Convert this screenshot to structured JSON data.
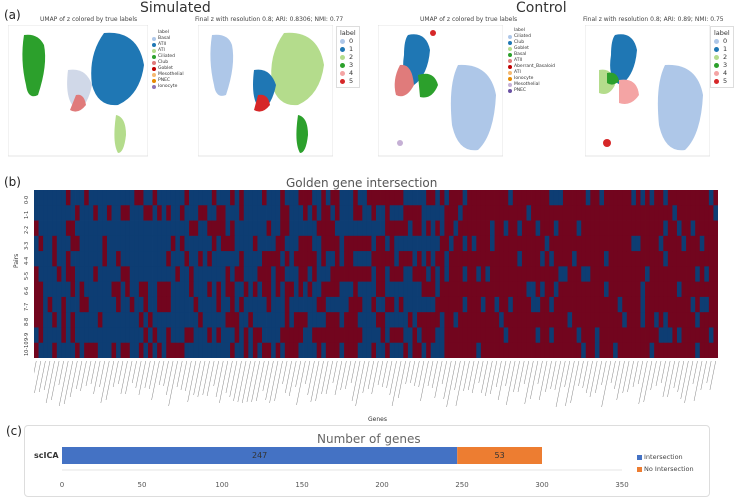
{
  "panel_a": {
    "label": "(a)",
    "group_simulated": "Simulated",
    "group_control": "Control",
    "plots": [
      {
        "title": "UMAP of z colored by true labels",
        "legend_title": "label",
        "legend": [
          "Basal",
          "ATII",
          "ATI",
          "Ciliated",
          "Club",
          "Goblet",
          "Mesothelial",
          "PNEC",
          "Ionocyte"
        ],
        "colors": [
          "#aec7e8",
          "#1f77b4",
          "#b4dc8c",
          "#2ca02c",
          "#e07b7b",
          "#c00000",
          "#f5b971",
          "#e68a00",
          "#8e74b5"
        ]
      },
      {
        "title": "Final z with resolution 0.8; ARI: 0.8306; NMI: 0.77",
        "legend_title": "label",
        "legend": [
          "0",
          "1",
          "2",
          "3",
          "4",
          "5"
        ],
        "colors": [
          "#aec7e8",
          "#1f77b4",
          "#b4dc8c",
          "#2ca02c",
          "#f4a4a4",
          "#d62728"
        ]
      },
      {
        "title": "UMAP of z colored by true labels",
        "legend_title": "label",
        "legend": [
          "Ciliated",
          "Club",
          "Goblet",
          "Basal",
          "ATII",
          "Aberrant_Basaloid",
          "ATI",
          "Ionocyte",
          "Mesothelial",
          "PNEC"
        ],
        "colors": [
          "#aec7e8",
          "#1f77b4",
          "#b4dc8c",
          "#2ca02c",
          "#e07b7b",
          "#c00000",
          "#f5b971",
          "#e68a00",
          "#c5b0d5",
          "#6a51a3"
        ]
      },
      {
        "title": "Final z with resolution 0.8; ARI: 0.89; NMI: 0.75",
        "legend_title": "label",
        "legend": [
          "0",
          "1",
          "2",
          "3",
          "4",
          "5"
        ],
        "colors": [
          "#aec7e8",
          "#1f77b4",
          "#b4dc8c",
          "#2ca02c",
          "#f4a4a4",
          "#d62728"
        ]
      }
    ]
  },
  "panel_b": {
    "label": "(b)",
    "title": "Golden gene intersection",
    "ylabel": "Pairs",
    "xlabel": "Genes",
    "pairs": [
      "0-0",
      "1-1",
      "2-2",
      "3-3",
      "4-4",
      "5-5",
      "6-6",
      "7-7",
      "8-8",
      "9-9",
      "10-10"
    ],
    "colors": {
      "yes": "#0d3d73",
      "no": "#72051e"
    }
  },
  "panel_c": {
    "label": "(c)",
    "chart_data": {
      "type": "bar",
      "title": "Number of genes",
      "categories": [
        "scICA"
      ],
      "series": [
        {
          "name": "Intersection",
          "values": [
            247
          ],
          "color": "#4472c4"
        },
        {
          "name": "No Intersection",
          "values": [
            53
          ],
          "color": "#ed7d31"
        }
      ],
      "xticks": [
        "0",
        "50",
        "100",
        "150",
        "200",
        "250",
        "300",
        "350"
      ],
      "xlim": [
        0,
        350
      ]
    }
  }
}
